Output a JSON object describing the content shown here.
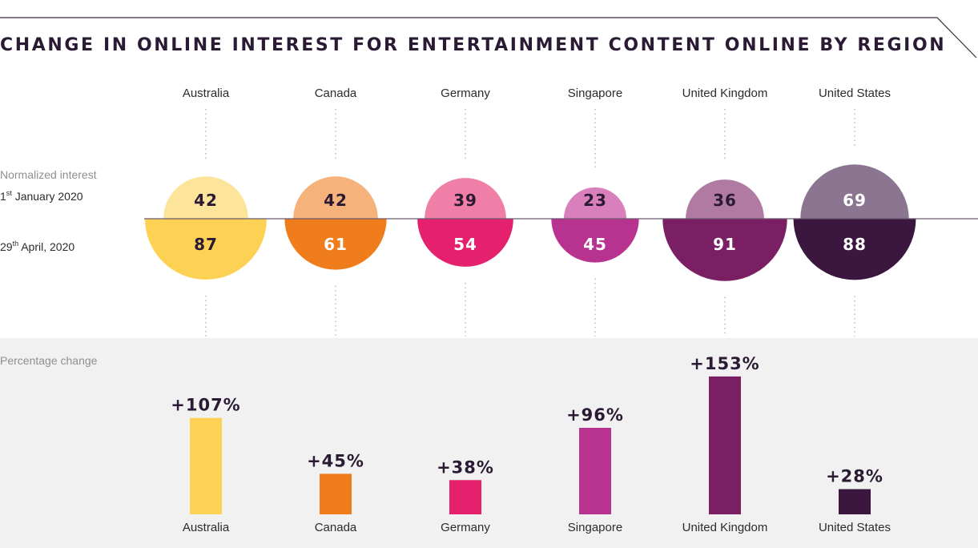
{
  "chart_data": {
    "type": "bar",
    "title": "CHANGE IN ONLINE INTEREST FOR ENTERTAINMENT CONTENT ONLINE BY REGION",
    "categories": [
      "Australia",
      "Canada",
      "Germany",
      "Singapore",
      "United Kingdom",
      "United States"
    ],
    "colors": {
      "jan": [
        "#fde49b",
        "#f5b27b",
        "#f07fa8",
        "#d97fbb",
        "#b07aa3",
        "#8c7590"
      ],
      "apr": [
        "#fdd254",
        "#ef7d1c",
        "#e5206c",
        "#b8338f",
        "#7a1f63",
        "#3b1740"
      ]
    },
    "series": [
      {
        "name": "1st January 2020",
        "label_main": "1",
        "label_sup": "st",
        "label_rest": " January 2020",
        "values": [
          42,
          42,
          39,
          23,
          36,
          69
        ]
      },
      {
        "name": "29th April, 2020",
        "label_main": "29",
        "label_sup": "th",
        "label_rest": " April, 2020",
        "values": [
          87,
          61,
          54,
          45,
          91,
          88
        ]
      }
    ],
    "normalized_label": "Normalized interest",
    "percentage_label": "Percentage change",
    "percentage_change": {
      "values": [
        107,
        45,
        38,
        96,
        153,
        28
      ],
      "labels": [
        "+107%",
        "+45%",
        "+38%",
        "+96%",
        "+153%",
        "+28%"
      ],
      "ylim": [
        0,
        160
      ]
    }
  }
}
